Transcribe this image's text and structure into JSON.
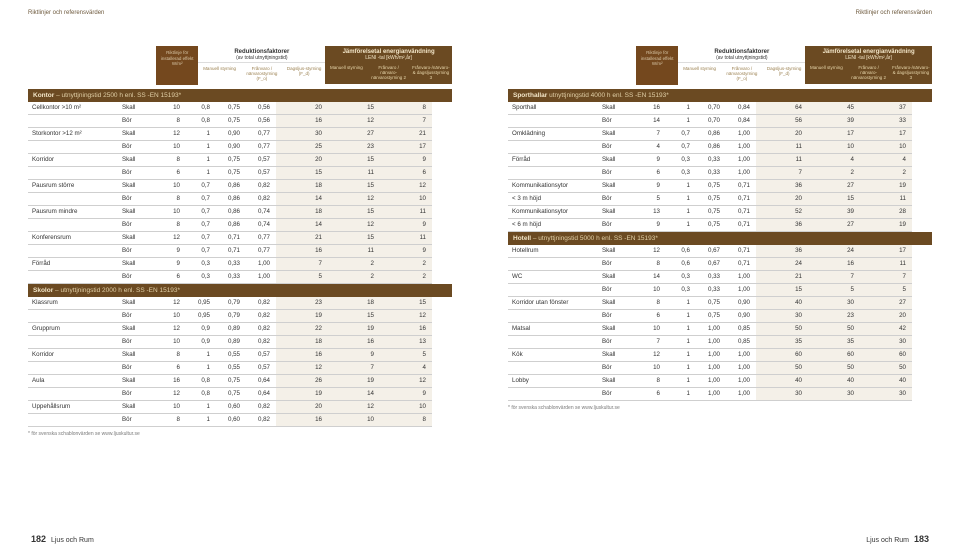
{
  "corners": {
    "left": "Riktlinjer och referensvärden",
    "right": "Riktlinjer och referensvärden"
  },
  "pagination": {
    "left_num": "182",
    "right_num": "183",
    "book": "Ljus och Rum"
  },
  "footnote": "* för svenska schablonvärden se www.ljuskultur.se",
  "header": {
    "installed": "Riktlinje för installerad effekt W/m²",
    "reduction_group_title": "Reduktionsfaktorer",
    "reduction_group_sub": "(av total utnyttjningstid)",
    "reduction_cols": [
      "Manuell styrning",
      "Frånvaro / närvarostyrning (F_o)",
      "Dagsljus-styrning (F_d)"
    ],
    "leni_group_title": "Jämförelsetal energianvändning",
    "leni_group_sub": "LENI -tal [kWh/m²,år]",
    "leni_cols": [
      "Manuell styrning",
      "Frånvaro / närvaro-närvarostyrning 2",
      "Frånvaro-/närvaro- & dagsljusstyrning 3"
    ]
  },
  "sections": [
    {
      "title_bold": "Kontor",
      "title_rest": " – utnyttjningstid 2500 h enl. SS -EN 15193*",
      "rows": [
        [
          "Cellkontor >10 m²",
          "Skall",
          "10",
          "0,8",
          "0,75",
          "0,56",
          "20",
          "15",
          "8"
        ],
        [
          "",
          "Bör",
          "8",
          "0,8",
          "0,75",
          "0,56",
          "16",
          "12",
          "7"
        ],
        [
          "Storkontor >12 m²",
          "Skall",
          "12",
          "1",
          "0,90",
          "0,77",
          "30",
          "27",
          "21"
        ],
        [
          "",
          "Bör",
          "10",
          "1",
          "0,90",
          "0,77",
          "25",
          "23",
          "17"
        ],
        [
          "Korridor",
          "Skall",
          "8",
          "1",
          "0,75",
          "0,57",
          "20",
          "15",
          "9"
        ],
        [
          "",
          "Bör",
          "6",
          "1",
          "0,75",
          "0,57",
          "15",
          "11",
          "6"
        ],
        [
          "Pausrum större",
          "Skall",
          "10",
          "0,7",
          "0,86",
          "0,82",
          "18",
          "15",
          "12"
        ],
        [
          "",
          "Bör",
          "8",
          "0,7",
          "0,86",
          "0,82",
          "14",
          "12",
          "10"
        ],
        [
          "Pausrum mindre",
          "Skall",
          "10",
          "0,7",
          "0,86",
          "0,74",
          "18",
          "15",
          "11"
        ],
        [
          "",
          "Bör",
          "8",
          "0,7",
          "0,86",
          "0,74",
          "14",
          "12",
          "9"
        ],
        [
          "Konferensrum",
          "Skall",
          "12",
          "0,7",
          "0,71",
          "0,77",
          "21",
          "15",
          "11"
        ],
        [
          "",
          "Bör",
          "9",
          "0,7",
          "0,71",
          "0,77",
          "16",
          "11",
          "9"
        ],
        [
          "Förråd",
          "Skall",
          "9",
          "0,3",
          "0,33",
          "1,00",
          "7",
          "2",
          "2"
        ],
        [
          "",
          "Bör",
          "6",
          "0,3",
          "0,33",
          "1,00",
          "5",
          "2",
          "2"
        ]
      ]
    },
    {
      "title_bold": "Skolor",
      "title_rest": " – utnyttjningstid 2000 h enl. SS -EN 15193*",
      "rows": [
        [
          "Klassrum",
          "Skall",
          "12",
          "0,95",
          "0,79",
          "0,82",
          "23",
          "18",
          "15"
        ],
        [
          "",
          "Bör",
          "10",
          "0,95",
          "0,79",
          "0,82",
          "19",
          "15",
          "12"
        ],
        [
          "Grupprum",
          "Skall",
          "12",
          "0,9",
          "0,89",
          "0,82",
          "22",
          "19",
          "16"
        ],
        [
          "",
          "Bör",
          "10",
          "0,9",
          "0,89",
          "0,82",
          "18",
          "16",
          "13"
        ],
        [
          "Korridor",
          "Skall",
          "8",
          "1",
          "0,55",
          "0,57",
          "16",
          "9",
          "5"
        ],
        [
          "",
          "Bör",
          "6",
          "1",
          "0,55",
          "0,57",
          "12",
          "7",
          "4"
        ],
        [
          "Aula",
          "Skall",
          "16",
          "0,8",
          "0,75",
          "0,64",
          "26",
          "19",
          "12"
        ],
        [
          "",
          "Bör",
          "12",
          "0,8",
          "0,75",
          "0,64",
          "19",
          "14",
          "9"
        ],
        [
          "Uppehållsrum",
          "Skall",
          "10",
          "1",
          "0,60",
          "0,82",
          "20",
          "12",
          "10"
        ],
        [
          "",
          "Bör",
          "8",
          "1",
          "0,60",
          "0,82",
          "16",
          "10",
          "8"
        ]
      ]
    },
    {
      "title_bold": "Sporthallar",
      "title_rest": " utnyttjningstid 4000 h enl. SS -EN 15193*",
      "rows": [
        [
          "Sporthall",
          "Skall",
          "16",
          "1",
          "0,70",
          "0,84",
          "64",
          "45",
          "37"
        ],
        [
          "",
          "Bör",
          "14",
          "1",
          "0,70",
          "0,84",
          "56",
          "39",
          "33"
        ],
        [
          "Omklädning",
          "Skall",
          "7",
          "0,7",
          "0,86",
          "1,00",
          "20",
          "17",
          "17"
        ],
        [
          "",
          "Bör",
          "4",
          "0,7",
          "0,86",
          "1,00",
          "11",
          "10",
          "10"
        ],
        [
          "Förråd",
          "Skall",
          "9",
          "0,3",
          "0,33",
          "1,00",
          "11",
          "4",
          "4"
        ],
        [
          "",
          "Bör",
          "6",
          "0,3",
          "0,33",
          "1,00",
          "7",
          "2",
          "2"
        ],
        [
          "Kommunikationsytor",
          "Skall",
          "9",
          "1",
          "0,75",
          "0,71",
          "36",
          "27",
          "19"
        ],
        [
          "< 3 m höjd",
          "Bör",
          "5",
          "1",
          "0,75",
          "0,71",
          "20",
          "15",
          "11"
        ],
        [
          "Kommunikationsytor",
          "Skall",
          "13",
          "1",
          "0,75",
          "0,71",
          "52",
          "39",
          "28"
        ],
        [
          "< 6 m höjd",
          "Bör",
          "9",
          "1",
          "0,75",
          "0,71",
          "36",
          "27",
          "19"
        ]
      ]
    },
    {
      "title_bold": "Hotell",
      "title_rest": " – utnyttjningstid 5000 h enl. SS -EN 15193*",
      "rows": [
        [
          "Hotellrum",
          "Skall",
          "12",
          "0,6",
          "0,67",
          "0,71",
          "36",
          "24",
          "17"
        ],
        [
          "",
          "Bör",
          "8",
          "0,6",
          "0,67",
          "0,71",
          "24",
          "16",
          "11"
        ],
        [
          "WC",
          "Skall",
          "14",
          "0,3",
          "0,33",
          "1,00",
          "21",
          "7",
          "7"
        ],
        [
          "",
          "Bör",
          "10",
          "0,3",
          "0,33",
          "1,00",
          "15",
          "5",
          "5"
        ],
        [
          "Korridor utan fönster",
          "Skall",
          "8",
          "1",
          "0,75",
          "0,90",
          "40",
          "30",
          "27"
        ],
        [
          "",
          "Bör",
          "6",
          "1",
          "0,75",
          "0,90",
          "30",
          "23",
          "20"
        ],
        [
          "Matsal",
          "Skall",
          "10",
          "1",
          "1,00",
          "0,85",
          "50",
          "50",
          "42"
        ],
        [
          "",
          "Bör",
          "7",
          "1",
          "1,00",
          "0,85",
          "35",
          "35",
          "30"
        ],
        [
          "Kök",
          "Skall",
          "12",
          "1",
          "1,00",
          "1,00",
          "60",
          "60",
          "60"
        ],
        [
          "",
          "Bör",
          "10",
          "1",
          "1,00",
          "1,00",
          "50",
          "50",
          "50"
        ],
        [
          "Lobby",
          "Skall",
          "8",
          "1",
          "1,00",
          "1,00",
          "40",
          "40",
          "40"
        ],
        [
          "",
          "Bör",
          "6",
          "1",
          "1,00",
          "1,00",
          "30",
          "30",
          "30"
        ]
      ]
    }
  ]
}
